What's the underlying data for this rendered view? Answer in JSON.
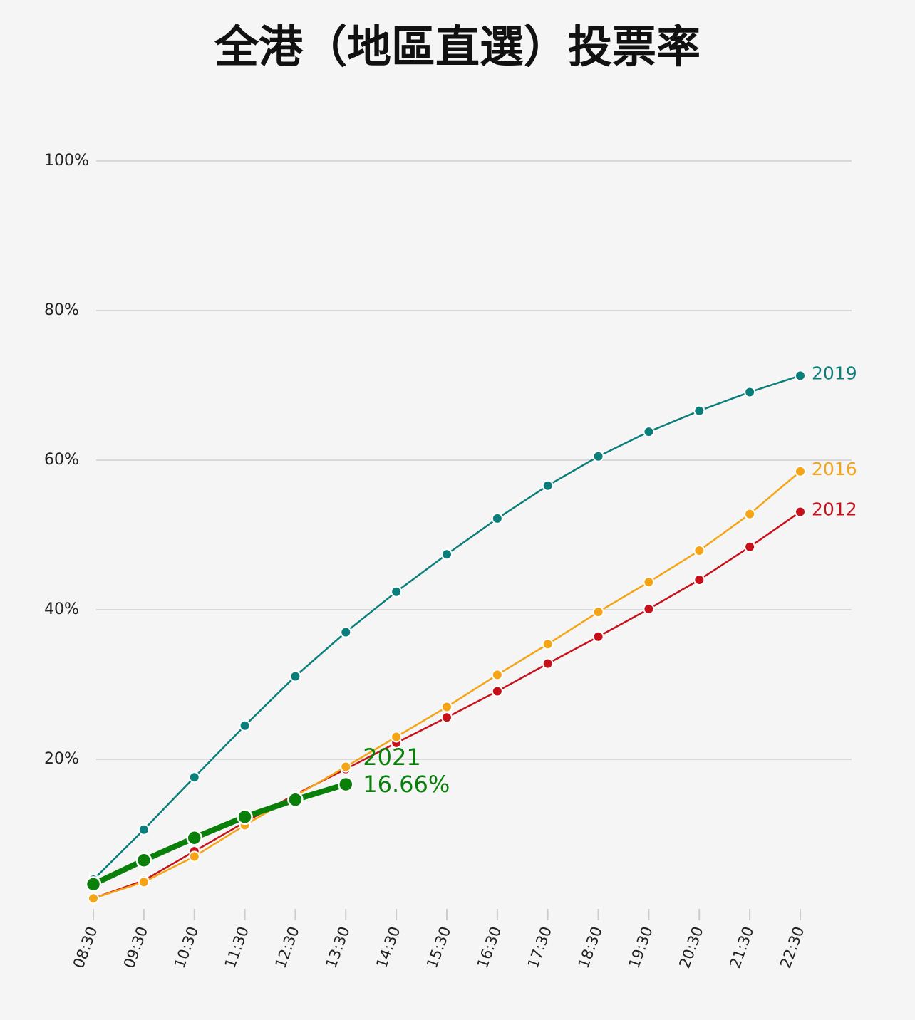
{
  "chart_data": {
    "type": "line",
    "title": "全港（地區直選）投票率",
    "categories": [
      "08:30",
      "09:30",
      "10:30",
      "11:30",
      "12:30",
      "13:30",
      "14:30",
      "15:30",
      "16:30",
      "17:30",
      "18:30",
      "19:30",
      "20:30",
      "21:30",
      "22:30"
    ],
    "series": [
      {
        "name": "2012",
        "color": "#c8101a",
        "values": [
          1.4,
          3.8,
          7.7,
          11.6,
          15.3,
          18.7,
          22.2,
          25.6,
          29.1,
          32.8,
          36.4,
          40.1,
          44.0,
          48.4,
          53.1
        ]
      },
      {
        "name": "2016",
        "color": "#f5a416",
        "values": [
          1.4,
          3.6,
          7.0,
          11.2,
          15.1,
          19.0,
          23.0,
          27.0,
          31.3,
          35.4,
          39.7,
          43.7,
          47.9,
          52.8,
          58.5
        ]
      },
      {
        "name": "2019",
        "color": "#0a7e7a",
        "values": [
          3.9,
          10.6,
          17.6,
          24.5,
          31.1,
          37.0,
          42.4,
          47.4,
          52.2,
          56.6,
          60.5,
          63.8,
          66.6,
          69.1,
          71.3
        ]
      },
      {
        "name": "2021",
        "color": "#0a800a",
        "values": [
          3.3,
          6.5,
          9.5,
          12.3,
          14.6,
          16.66,
          null,
          null,
          null,
          null,
          null,
          null,
          null,
          null,
          null
        ],
        "value_labels": [
          null,
          null,
          null,
          null,
          null,
          "16.66%",
          null,
          null,
          null,
          null,
          null,
          null,
          null,
          null,
          null
        ]
      }
    ],
    "ylim": [
      0,
      100
    ],
    "yticks": [
      {
        "value": 20,
        "label": "20%"
      },
      {
        "value": 40,
        "label": "40%"
      },
      {
        "value": 60,
        "label": "60%"
      },
      {
        "value": 80,
        "label": "80%"
      },
      {
        "value": 100,
        "label": "100%"
      }
    ],
    "grid": true
  }
}
